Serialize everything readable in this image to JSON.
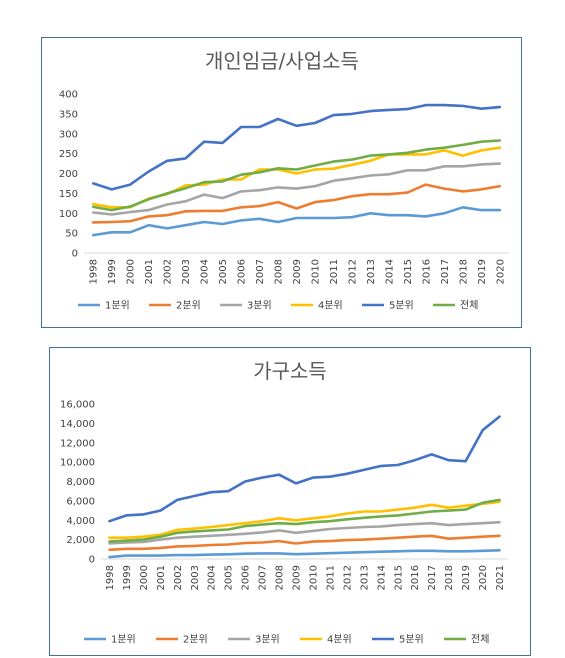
{
  "chart_data": [
    {
      "type": "line",
      "title": "개인임금/사업소득",
      "x": [
        "1998",
        "1999",
        "2000",
        "2001",
        "2002",
        "2003",
        "2004",
        "2005",
        "2006",
        "2007",
        "2008",
        "2009",
        "2010",
        "2011",
        "2012",
        "2013",
        "2014",
        "2015",
        "2016",
        "2017",
        "2018",
        "2019",
        "2020"
      ],
      "ylim": [
        0,
        400
      ],
      "yticks": [
        "0",
        "50",
        "100",
        "150",
        "200",
        "250",
        "300",
        "350",
        "400"
      ],
      "grid": false,
      "legend": "bottom",
      "series": [
        {
          "name": "1분위",
          "color": "#5b9bd5",
          "values": [
            45,
            52,
            52,
            70,
            62,
            70,
            78,
            73,
            82,
            86,
            78,
            88,
            88,
            88,
            90,
            100,
            95,
            95,
            92,
            100,
            115,
            108,
            108
          ]
        },
        {
          "name": "2분위",
          "color": "#ed7d31",
          "values": [
            77,
            78,
            80,
            92,
            95,
            105,
            106,
            106,
            115,
            118,
            128,
            112,
            128,
            133,
            143,
            148,
            148,
            152,
            172,
            162,
            155,
            160,
            168
          ]
        },
        {
          "name": "3분위",
          "color": "#a5a5a5",
          "values": [
            102,
            97,
            103,
            108,
            122,
            130,
            147,
            138,
            155,
            158,
            165,
            162,
            168,
            182,
            188,
            195,
            198,
            208,
            208,
            218,
            218,
            223,
            225
          ]
        },
        {
          "name": "4분위",
          "color": "#ffc000",
          "values": [
            123,
            115,
            115,
            137,
            148,
            170,
            172,
            185,
            185,
            210,
            210,
            200,
            210,
            212,
            222,
            232,
            248,
            248,
            248,
            258,
            245,
            258,
            265
          ]
        },
        {
          "name": "5분위",
          "color": "#4472c4",
          "values": [
            175,
            160,
            172,
            205,
            232,
            238,
            280,
            277,
            317,
            317,
            337,
            320,
            327,
            347,
            350,
            357,
            360,
            362,
            372,
            372,
            370,
            363,
            367
          ]
        },
        {
          "name": "전체",
          "color": "#70ad47",
          "values": [
            116,
            108,
            117,
            135,
            150,
            163,
            178,
            180,
            197,
            203,
            213,
            210,
            220,
            230,
            235,
            245,
            248,
            252,
            260,
            265,
            272,
            280,
            283
          ]
        }
      ]
    },
    {
      "type": "line",
      "title": "가구소득",
      "x": [
        "1998",
        "1999",
        "2000",
        "2001",
        "2002",
        "2003",
        "2004",
        "2005",
        "2006",
        "2007",
        "2008",
        "2009",
        "2010",
        "2011",
        "2012",
        "2013",
        "2014",
        "2015",
        "2016",
        "2017",
        "2018",
        "2019",
        "2020",
        "2021"
      ],
      "ylim": [
        0,
        16000
      ],
      "yticks": [
        "0",
        "2,000",
        "4,000",
        "6,000",
        "8,000",
        "10,000",
        "12,000",
        "14,000",
        "16,000"
      ],
      "grid": false,
      "legend": "bottom",
      "series": [
        {
          "name": "1분위",
          "color": "#5b9bd5",
          "values": [
            200,
            350,
            350,
            350,
            400,
            400,
            450,
            480,
            550,
            580,
            580,
            500,
            550,
            600,
            650,
            700,
            750,
            800,
            850,
            850,
            800,
            800,
            850,
            900
          ]
        },
        {
          "name": "2분위",
          "color": "#ed7d31",
          "values": [
            950,
            1050,
            1050,
            1150,
            1300,
            1350,
            1450,
            1500,
            1650,
            1700,
            1850,
            1600,
            1800,
            1850,
            1950,
            2000,
            2100,
            2200,
            2300,
            2400,
            2100,
            2200,
            2300,
            2400
          ]
        },
        {
          "name": "3분위",
          "color": "#a5a5a5",
          "values": [
            1600,
            1700,
            1750,
            2000,
            2200,
            2300,
            2400,
            2500,
            2600,
            2750,
            2950,
            2700,
            2900,
            3100,
            3200,
            3300,
            3350,
            3500,
            3600,
            3700,
            3500,
            3600,
            3700,
            3800
          ]
        },
        {
          "name": "4분위",
          "color": "#ffc000",
          "values": [
            2200,
            2200,
            2300,
            2500,
            3000,
            3150,
            3300,
            3500,
            3700,
            3900,
            4200,
            4000,
            4200,
            4400,
            4700,
            4900,
            4900,
            5100,
            5300,
            5600,
            5300,
            5500,
            5700,
            5900
          ]
        },
        {
          "name": "5분위",
          "color": "#4472c4",
          "values": [
            3900,
            4500,
            4600,
            5000,
            6100,
            6500,
            6900,
            7000,
            8000,
            8400,
            8700,
            7800,
            8400,
            8500,
            8800,
            9200,
            9600,
            9700,
            10200,
            10800,
            10200,
            10100,
            13300,
            14700
          ]
        },
        {
          "name": "전체",
          "color": "#70ad47",
          "values": [
            1800,
            1900,
            2000,
            2300,
            2700,
            2850,
            2950,
            3050,
            3400,
            3550,
            3700,
            3600,
            3800,
            3900,
            4100,
            4250,
            4400,
            4500,
            4700,
            4900,
            5000,
            5100,
            5800,
            6100
          ]
        }
      ]
    }
  ]
}
